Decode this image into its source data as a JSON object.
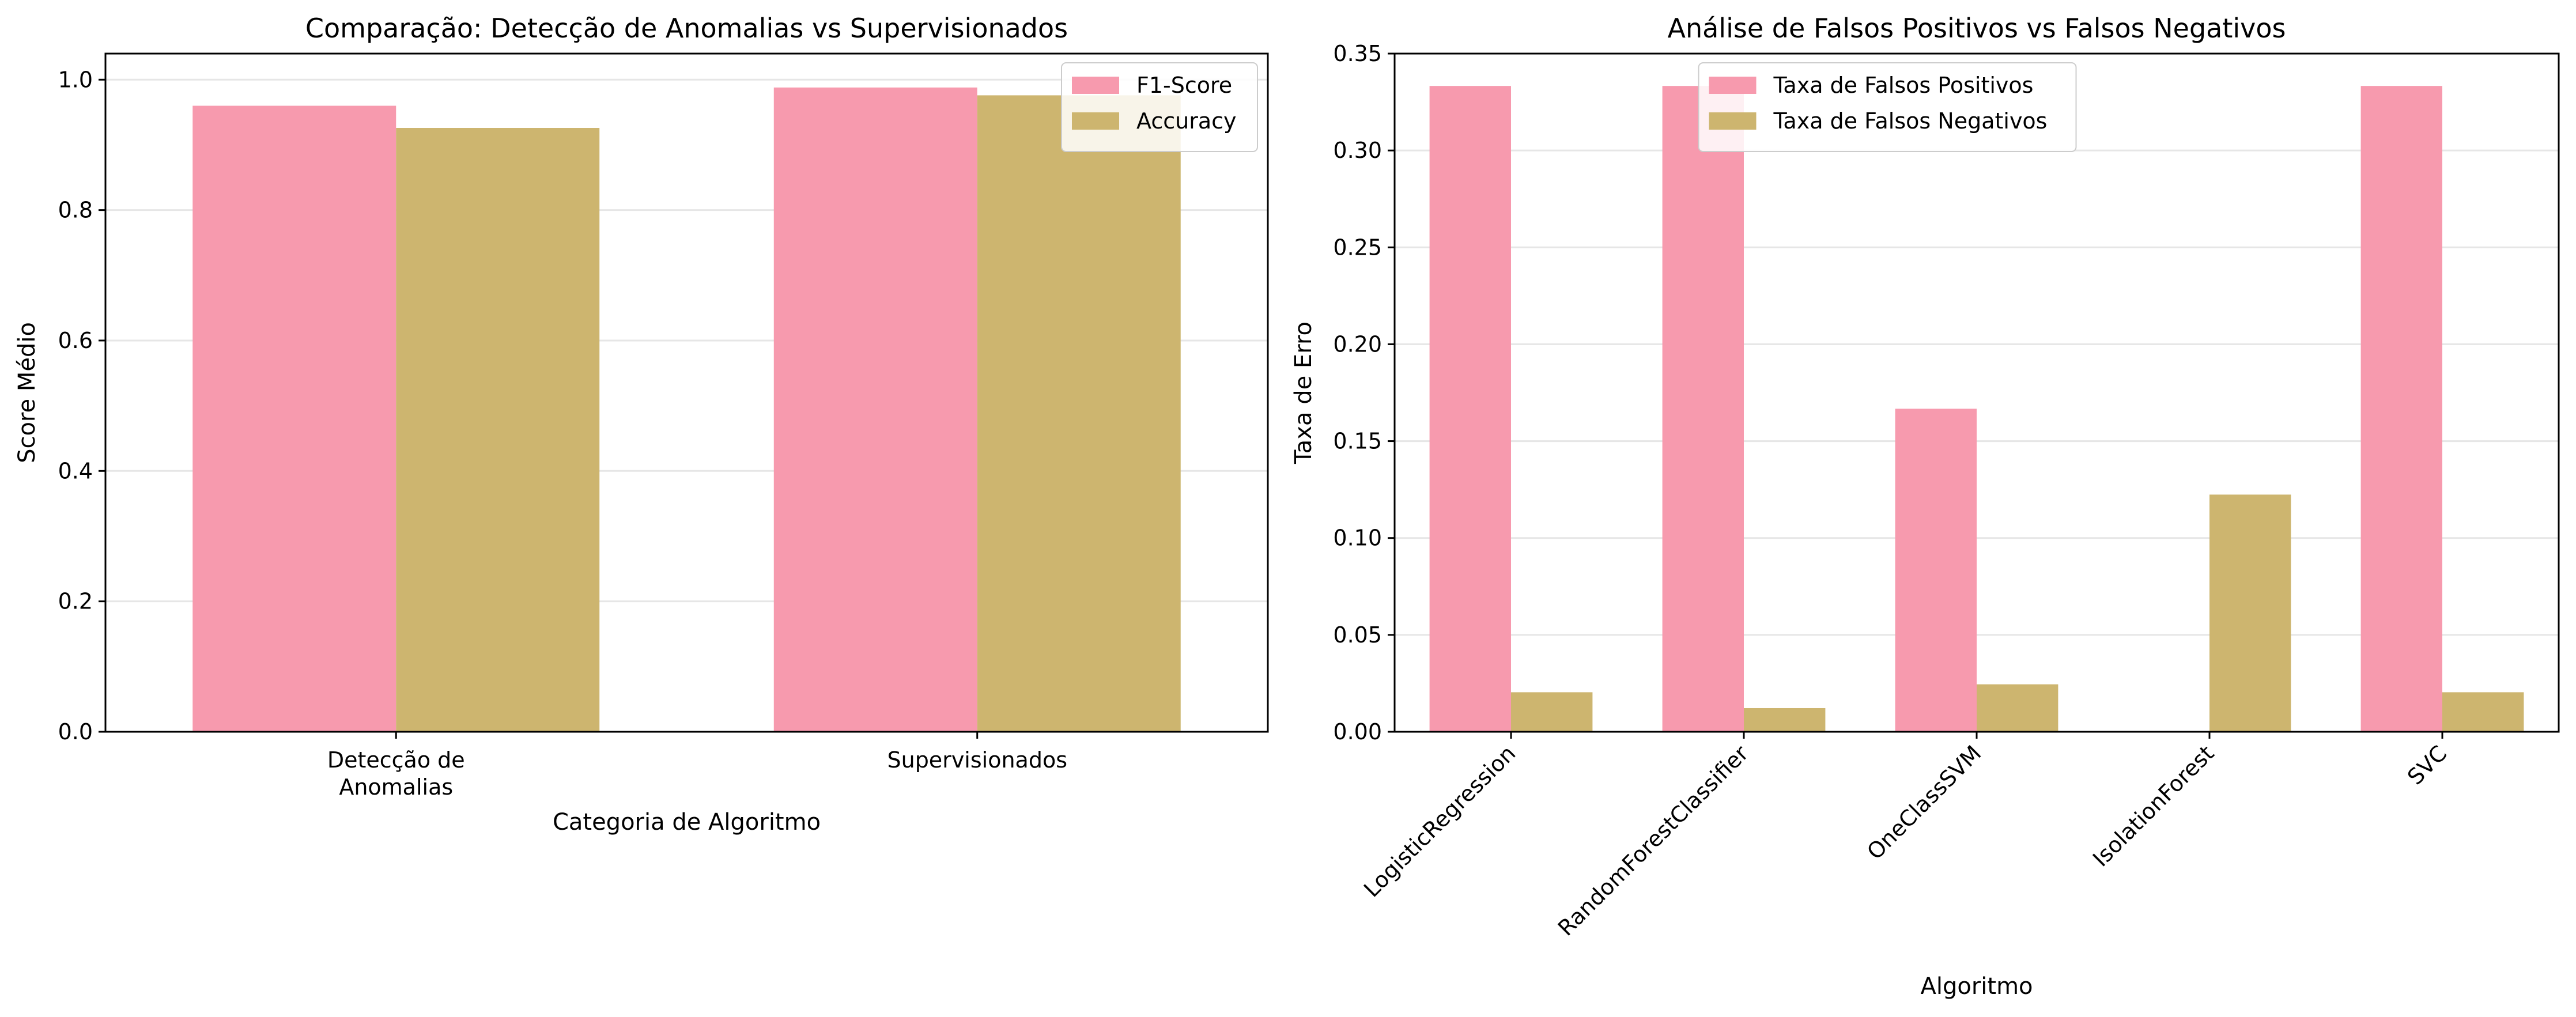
{
  "colors": {
    "pink": "#f79aae",
    "gold": "#cdb56f",
    "grid": "#e6e6e6",
    "axis": "#000000"
  },
  "chart_data": [
    {
      "type": "bar",
      "title": "Comparação: Detecção de Anomalias vs Supervisionados",
      "xlabel": "Categoria de Algoritmo",
      "ylabel": "Score Médio",
      "categories": [
        [
          "Detecção de",
          "Anomalias"
        ],
        [
          "Supervisionados"
        ]
      ],
      "series": [
        {
          "name": "F1-Score",
          "values": [
            0.96,
            0.988
          ],
          "color": "pink"
        },
        {
          "name": "Accuracy",
          "values": [
            0.926,
            0.976
          ],
          "color": "gold"
        }
      ],
      "ylim": [
        0,
        1.04
      ],
      "yticks": [
        0.0,
        0.2,
        0.4,
        0.6,
        0.8,
        1.0
      ],
      "ytick_labels": [
        "0.0",
        "0.2",
        "0.4",
        "0.6",
        "0.8",
        "1.0"
      ],
      "grid": "y",
      "legend": "upper right"
    },
    {
      "type": "bar",
      "title": "Análise de Falsos Positivos vs Falsos Negativos",
      "xlabel": "Algoritmo",
      "ylabel": "Taxa de Erro",
      "categories": [
        "LogisticRegression",
        "RandomForestClassifier",
        "OneClassSVM",
        "IsolationForest",
        "SVC"
      ],
      "series": [
        {
          "name": "Taxa de Falsos Positivos",
          "values": [
            0.3333,
            0.3333,
            0.1667,
            0.0,
            0.3333
          ],
          "color": "pink"
        },
        {
          "name": "Taxa de Falsos Negativos",
          "values": [
            0.0204,
            0.0122,
            0.0245,
            0.1224,
            0.0204
          ],
          "color": "gold"
        }
      ],
      "ylim": [
        0,
        0.35
      ],
      "yticks": [
        0.0,
        0.05,
        0.1,
        0.15,
        0.2,
        0.25,
        0.3,
        0.35
      ],
      "ytick_labels": [
        "0.00",
        "0.05",
        "0.10",
        "0.15",
        "0.20",
        "0.25",
        "0.30",
        "0.35"
      ],
      "xtick_rotation": 45,
      "grid": "y",
      "legend": "upper center"
    }
  ]
}
